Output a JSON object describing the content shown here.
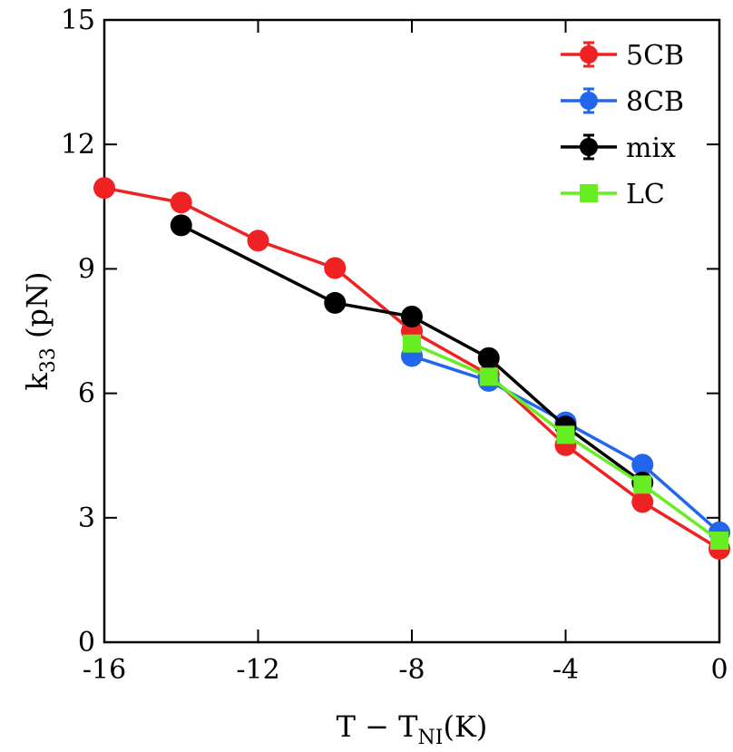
{
  "chart_data": {
    "type": "line",
    "xlabel": "T − T_NI(K)",
    "ylabel": "k_33 (pN)",
    "xlim": [
      -16,
      0
    ],
    "ylim": [
      0,
      15
    ],
    "xticks": [
      -16,
      -12,
      -8,
      -4,
      0
    ],
    "yticks": [
      0,
      3,
      6,
      9,
      12,
      15
    ],
    "xtick_labels": [
      "-16",
      "-12",
      "-8",
      "-4",
      "0"
    ],
    "ytick_labels": [
      "0",
      "3",
      "6",
      "9",
      "12",
      "15"
    ],
    "grid": false,
    "legend_position": "top-right",
    "series": [
      {
        "name": "5CB",
        "color": "#ee2222",
        "marker": "circle",
        "x": [
          -16,
          -14,
          -12,
          -10,
          -8,
          -6,
          -4,
          -2,
          0
        ],
        "y": [
          10.95,
          10.6,
          9.68,
          9.02,
          7.5,
          6.45,
          4.75,
          3.38,
          2.25
        ]
      },
      {
        "name": "8CB",
        "color": "#2266ee",
        "marker": "circle",
        "x": [
          -8,
          -6,
          -4,
          -2,
          0
        ],
        "y": [
          6.9,
          6.3,
          5.3,
          4.28,
          2.65
        ]
      },
      {
        "name": "mix",
        "color": "#000000",
        "marker": "circle",
        "x": [
          -14,
          -10,
          -8,
          -6,
          -4,
          -2
        ],
        "y": [
          10.05,
          8.18,
          7.85,
          6.85,
          5.2,
          3.85
        ]
      },
      {
        "name": "LC",
        "color": "#66ee22",
        "marker": "square",
        "x": [
          -8,
          -6,
          -4,
          -2,
          0
        ],
        "y": [
          7.2,
          6.4,
          5.0,
          3.8,
          2.45
        ]
      }
    ]
  }
}
